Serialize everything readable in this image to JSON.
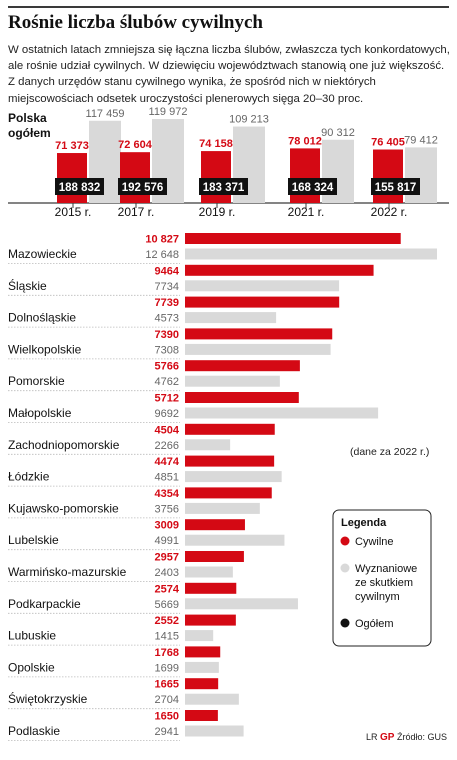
{
  "title": "Rośnie liczba ślubów cywilnych",
  "lead": "W ostatnich latach zmniejsza się łączna liczba ślubów, zwłaszcza tych konkordatowych, ale rośnie udział cywilnych. W dziewięciu województwach stanowią one już większość. Z danych urzędów stanu cywilnego wynika, że spośród nich w niektórych miejscowościach odsetek uroczystości plenerowych sięga 20–30 proc.",
  "note": "(dane za 2022 r.)",
  "footer": {
    "initials": "LR",
    "logo": "GP",
    "source": "Źródło: GUS"
  },
  "colors": {
    "civil": "#d40914",
    "secular": "#d9d9d9",
    "total": "#111111"
  },
  "legend": {
    "title": "Legenda",
    "items": [
      {
        "label": "Cywilne",
        "color": "#d40914"
      },
      {
        "label": "Wyznaniowe ze skutkiem cywilnym",
        "color": "#d9d9d9"
      },
      {
        "label": "Ogółem",
        "color": "#111111"
      }
    ]
  },
  "chart_data": [
    {
      "type": "bar",
      "title": "Polska ogółem",
      "categories": [
        "2015 r.",
        "2017 r.",
        "2019 r.",
        "2021 r.",
        "2022 r."
      ],
      "series": [
        {
          "name": "Cywilne",
          "values": [
            71373,
            72604,
            74158,
            78012,
            76405
          ],
          "labels": [
            "71 373",
            "72 604",
            "74 158",
            "78 012",
            "76 405"
          ]
        },
        {
          "name": "Wyznaniowe ze skutkiem cywilnym",
          "values": [
            117459,
            119972,
            109213,
            90312,
            79412
          ],
          "labels": [
            "117 459",
            "119 972",
            "109 213",
            "90 312",
            "79 412"
          ]
        },
        {
          "name": "Ogółem",
          "values": [
            188832,
            192576,
            183371,
            168324,
            155817
          ],
          "labels": [
            "188 832",
            "192 576",
            "183 371",
            "168 324",
            "155 817"
          ]
        }
      ]
    },
    {
      "type": "bar",
      "orientation": "horizontal",
      "categories": [
        "Mazowieckie",
        "Śląskie",
        "Dolnośląskie",
        "Wielkopolskie",
        "Pomorskie",
        "Małopolskie",
        "Zachodniopomorskie",
        "Łódzkie",
        "Kujawsko-pomorskie",
        "Lubelskie",
        "Warmińsko-mazurskie",
        "Podkarpackie",
        "Lubuskie",
        "Opolskie",
        "Świętokrzyskie",
        "Podlaskie"
      ],
      "series": [
        {
          "name": "Cywilne",
          "values": [
            10827,
            9464,
            7739,
            7390,
            5766,
            5712,
            4504,
            4474,
            4354,
            3009,
            2957,
            2574,
            2552,
            1768,
            1665,
            1650
          ],
          "labels": [
            "10 827",
            "9464",
            "7739",
            "7390",
            "5766",
            "5712",
            "4504",
            "4474",
            "4354",
            "3009",
            "2957",
            "2574",
            "2552",
            "1768",
            "1665",
            "1650"
          ]
        },
        {
          "name": "Wyznaniowe ze skutkiem cywilnym",
          "values": [
            12648,
            7734,
            4573,
            7308,
            4762,
            9692,
            2266,
            4851,
            3756,
            4991,
            2403,
            5669,
            1415,
            1699,
            2704,
            2941
          ],
          "labels": [
            "12 648",
            "7734",
            "4573",
            "7308",
            "4762",
            "9692",
            "2266",
            "4851",
            "3756",
            "4991",
            "2403",
            "5669",
            "1415",
            "1699",
            "2704",
            "2941"
          ]
        }
      ]
    }
  ]
}
